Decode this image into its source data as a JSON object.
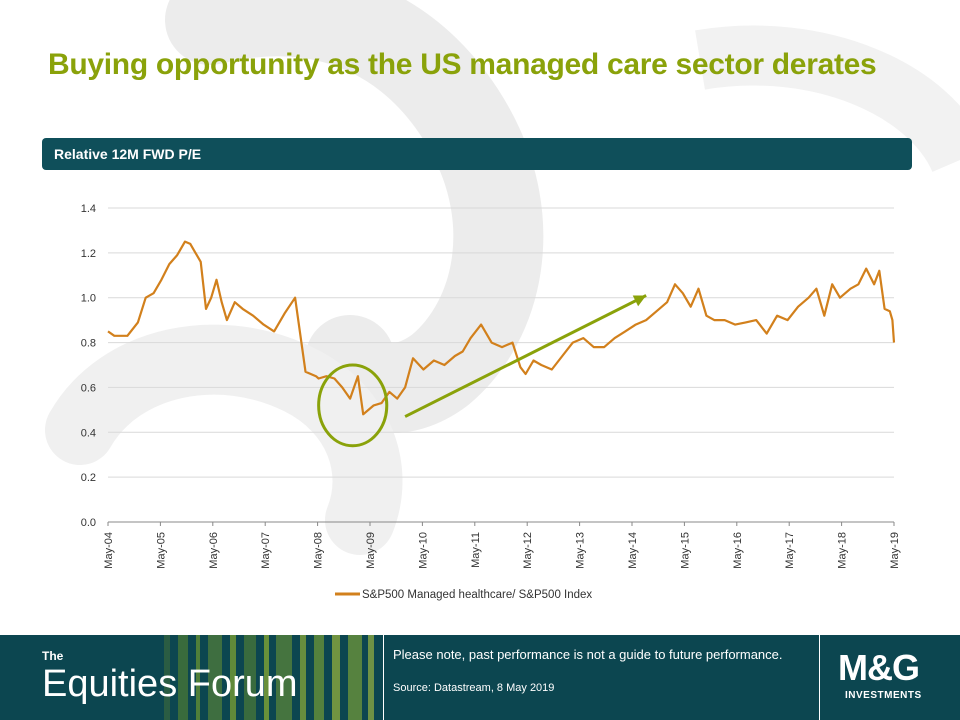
{
  "slide": {
    "title": "Buying opportunity as the US managed care sector derates"
  },
  "chart_header": {
    "label": "Relative  12M  FWD P/E"
  },
  "footer": {
    "brand_the": "The",
    "brand_name": "Equities Forum",
    "disclaimer": "Please note, past performance is not a guide to future performance.",
    "source": "Source: Datastream, 8 May 2019",
    "logo_text": "M&G",
    "logo_sub": "INVESTMENTS"
  },
  "colors": {
    "title": "#8aa20a",
    "header_bg": "#0f4f5a",
    "footer_bg": "#0c4650",
    "series": "#d2801c",
    "annotation": "#8aa20a",
    "grid": "#d9d9d9"
  },
  "chart_data": {
    "type": "line",
    "title": "Relative  12M  FWD P/E",
    "xlabel": "",
    "ylabel": "",
    "ylim": [
      0,
      1.4
    ],
    "yticks": [
      "0.0",
      "0.2",
      "0.4",
      "0.6",
      "0.8",
      "1.0",
      "1.2",
      "1.4"
    ],
    "xticks": [
      "May-04",
      "May-05",
      "May-06",
      "May-07",
      "May-08",
      "May-09",
      "May-10",
      "May-11",
      "May-12",
      "May-13",
      "May-14",
      "May-15",
      "May-16",
      "May-17",
      "May-18",
      "May-19"
    ],
    "grid": true,
    "legend_position": "bottom",
    "series": [
      {
        "name": "S&P500 Managed healthcare/ S&P500 Index",
        "color": "#d2801c",
        "x": [
          2004.33,
          2004.45,
          2004.7,
          2004.9,
          2005.05,
          2005.2,
          2005.35,
          2005.5,
          2005.65,
          2005.8,
          2005.9,
          2006.0,
          2006.1,
          2006.2,
          2006.3,
          2006.4,
          2006.5,
          2006.6,
          2006.75,
          2006.9,
          2007.1,
          2007.3,
          2007.5,
          2007.7,
          2007.9,
          2008.1,
          2008.3,
          2008.35,
          2008.5,
          2008.65,
          2008.8,
          2008.95,
          2009.1,
          2009.2,
          2009.3,
          2009.4,
          2009.55,
          2009.7,
          2009.85,
          2010.0,
          2010.15,
          2010.35,
          2010.55,
          2010.75,
          2010.95,
          2011.1,
          2011.25,
          2011.45,
          2011.65,
          2011.85,
          2012.05,
          2012.2,
          2012.3,
          2012.45,
          2012.6,
          2012.8,
          2013.0,
          2013.2,
          2013.4,
          2013.6,
          2013.8,
          2014.0,
          2014.2,
          2014.4,
          2014.6,
          2014.8,
          2015.0,
          2015.15,
          2015.3,
          2015.45,
          2015.6,
          2015.75,
          2015.9,
          2016.1,
          2016.3,
          2016.5,
          2016.7,
          2016.9,
          2017.1,
          2017.3,
          2017.5,
          2017.7,
          2017.85,
          2018.0,
          2018.15,
          2018.3,
          2018.5,
          2018.65,
          2018.8,
          2018.95,
          2019.05,
          2019.15,
          2019.25,
          2019.3,
          2019.33
        ],
        "values": [
          0.85,
          0.83,
          0.83,
          0.89,
          1.0,
          1.02,
          1.08,
          1.15,
          1.19,
          1.25,
          1.24,
          1.2,
          1.16,
          0.95,
          1.0,
          1.08,
          0.98,
          0.9,
          0.98,
          0.95,
          0.92,
          0.88,
          0.85,
          0.93,
          1.0,
          0.67,
          0.65,
          0.64,
          0.65,
          0.64,
          0.6,
          0.55,
          0.65,
          0.48,
          0.5,
          0.52,
          0.53,
          0.58,
          0.55,
          0.6,
          0.73,
          0.68,
          0.72,
          0.7,
          0.74,
          0.76,
          0.82,
          0.88,
          0.8,
          0.78,
          0.8,
          0.69,
          0.66,
          0.72,
          0.7,
          0.68,
          0.74,
          0.8,
          0.82,
          0.78,
          0.78,
          0.82,
          0.85,
          0.88,
          0.9,
          0.94,
          0.98,
          1.06,
          1.02,
          0.96,
          1.04,
          0.92,
          0.9,
          0.9,
          0.88,
          0.89,
          0.9,
          0.84,
          0.92,
          0.9,
          0.96,
          1.0,
          1.04,
          0.92,
          1.06,
          1.0,
          1.04,
          1.06,
          1.13,
          1.06,
          1.12,
          0.95,
          0.94,
          0.9,
          0.8
        ]
      }
    ],
    "annotations": [
      {
        "type": "ellipse",
        "center": [
          2009.0,
          0.52
        ],
        "rx_years": 0.65,
        "ry": 0.18
      },
      {
        "type": "arrow",
        "from": [
          2010.0,
          0.47
        ],
        "to": [
          2014.6,
          1.01
        ]
      }
    ]
  }
}
